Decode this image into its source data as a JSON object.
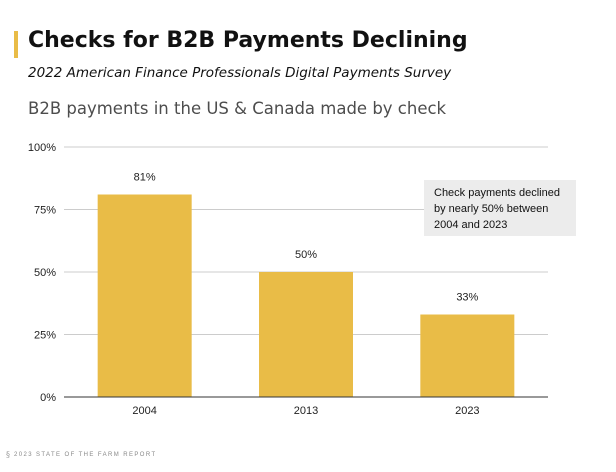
{
  "header": {
    "title": "Checks for B2B Payments Declining",
    "subtitle": "2022 American Finance Professionals Digital Payments Survey",
    "accent_color": "#e9bc47"
  },
  "chart_data": {
    "type": "bar",
    "title": "B2B payments in the US & Canada made by check",
    "categories": [
      "2004",
      "2013",
      "2023"
    ],
    "values": [
      81,
      50,
      33
    ],
    "value_labels": [
      "81%",
      "50%",
      "33%"
    ],
    "ylim": [
      0,
      100
    ],
    "yticks": [
      0,
      25,
      50,
      75,
      100
    ],
    "ytick_labels": [
      "0%",
      "25%",
      "50%",
      "75%",
      "100%"
    ],
    "xlabel": "",
    "ylabel": "",
    "grid": true,
    "bar_color": "#e9bc47",
    "annotation": "Check payments declined by nearly 50% between 2004 and 2023"
  },
  "footer": {
    "logo_glyph": "§",
    "text": "2023 STATE OF THE FARM REPORT"
  }
}
